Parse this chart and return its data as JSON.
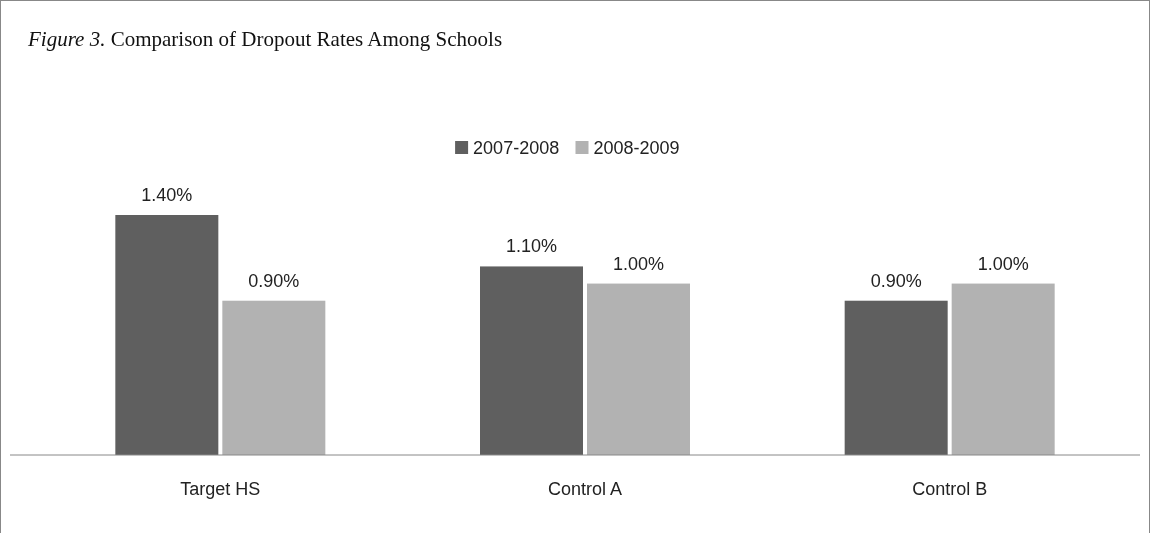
{
  "chart_data": {
    "type": "bar",
    "title": "Figure 3. Comparison of Dropout Rates Among Schools",
    "categories": [
      "Target HS",
      "Control A",
      "Control B"
    ],
    "series": [
      {
        "name": "2007-2008",
        "color": "#5f5f5f",
        "values": [
          1.4,
          1.1,
          0.9
        ],
        "value_labels": [
          "1.40%",
          "1.10%",
          "0.90%"
        ]
      },
      {
        "name": "2008-2009",
        "color": "#b2b2b2",
        "values": [
          0.9,
          1.0,
          1.0
        ],
        "value_labels": [
          "0.90%",
          "1.00%",
          "1.00%"
        ]
      }
    ],
    "legend": "top",
    "grid": false
  }
}
